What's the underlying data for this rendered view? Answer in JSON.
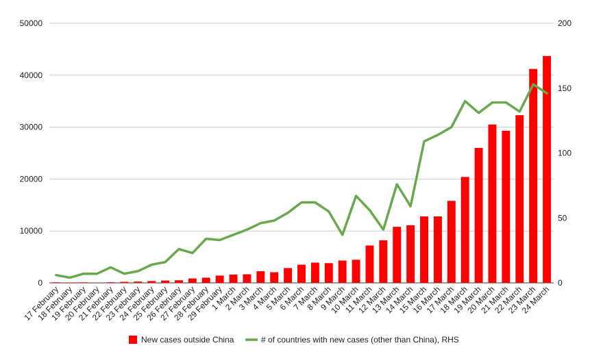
{
  "chart_data": {
    "type": "bar",
    "categories": [
      "17 February",
      "18 February",
      "19 February",
      "20 February",
      "21 February",
      "22 February",
      "23 February",
      "24 February",
      "25 February",
      "26 February",
      "27 February",
      "28 February",
      "29 February",
      "1 March",
      "2 March",
      "3 March",
      "4 March",
      "5 March",
      "6 March",
      "7 March",
      "8 March",
      "9 March",
      "10 March",
      "11 March",
      "12 March",
      "13 March",
      "14 March",
      "15 March",
      "16 March",
      "17 March",
      "18 March",
      "19 March",
      "20 March",
      "21 March",
      "22 March",
      "23 March",
      "24 March"
    ],
    "series": [
      {
        "name": "New cases outside China",
        "type": "bar",
        "axis": "left",
        "color": "#ff0000",
        "values": [
          100,
          80,
          100,
          30,
          120,
          200,
          250,
          350,
          450,
          500,
          850,
          1000,
          1400,
          1600,
          1650,
          2250,
          2050,
          2850,
          3500,
          3900,
          3800,
          4300,
          4450,
          7200,
          8200,
          10800,
          11100,
          12800,
          12800,
          15800,
          20400,
          26000,
          30500,
          29300,
          32300,
          41200,
          43700
        ]
      },
      {
        "name": "# of countries with new cases (other than China), RHS",
        "type": "line",
        "axis": "right",
        "color": "#6aa84f",
        "values": [
          6,
          4,
          7,
          7,
          12,
          7,
          9,
          14,
          16,
          26,
          23,
          34,
          33,
          37,
          41,
          46,
          48,
          54,
          62,
          62,
          55,
          37,
          67,
          56,
          41,
          76,
          59,
          109,
          114,
          120,
          140,
          131,
          139,
          139,
          132,
          153,
          146
        ]
      }
    ],
    "ylim_left": [
      0,
      50000
    ],
    "ylim_right": [
      0,
      200
    ],
    "yticks_left": [
      "0",
      "10000",
      "20000",
      "30000",
      "40000",
      "50000"
    ],
    "yticks_right": [
      "0",
      "50",
      "100",
      "150",
      "200"
    ],
    "grid": true,
    "legend_position": "bottom"
  }
}
